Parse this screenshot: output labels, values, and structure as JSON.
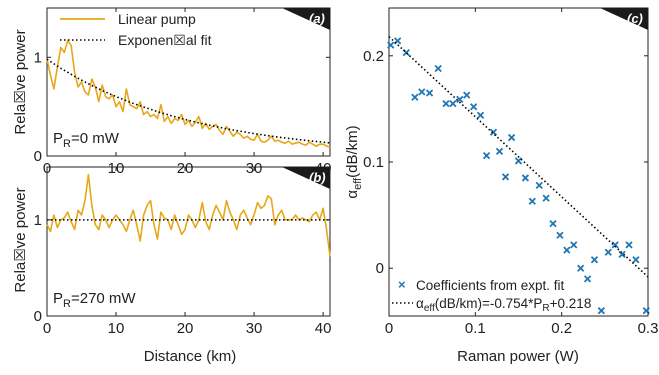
{
  "colors": {
    "linear": "#e6a817",
    "fit": "#000000",
    "marker": "#1f77b4",
    "axis": "#222222",
    "tag_bg": "#1a1a1a",
    "tag_fg": "#ffffff"
  },
  "chart_data": [
    {
      "id": "a",
      "tag": "(a)",
      "type": "line",
      "ylabel": "Rela☒ve power",
      "annotation": {
        "prefix": "P",
        "sub": "R",
        "suffix": "=0 mW"
      },
      "xlim": [
        0,
        41
      ],
      "ylim": [
        0,
        1.5
      ],
      "xticks": [
        "0",
        "10",
        "20",
        "30",
        "40"
      ],
      "xtick_values": [
        0,
        10,
        20,
        30,
        40
      ],
      "yticks": [
        "0",
        "1"
      ],
      "ytick_values": [
        0,
        1
      ],
      "legend": [
        "Linear pump",
        "Exponen☒al fit"
      ],
      "series": [
        {
          "name": "Linear pump",
          "style": "solid",
          "x": [
            0,
            0.5,
            1,
            1.5,
            2,
            2.5,
            3,
            3.5,
            4,
            4.5,
            5,
            5.5,
            6,
            6.5,
            7,
            7.5,
            8,
            8.5,
            9,
            9.5,
            10,
            10.5,
            11,
            11.5,
            12,
            12.5,
            13,
            13.5,
            14,
            14.5,
            15,
            15.5,
            16,
            16.5,
            17,
            17.5,
            18,
            18.5,
            19,
            19.5,
            20,
            20.5,
            21,
            21.5,
            22,
            22.5,
            23,
            23.5,
            24,
            24.5,
            25,
            25.5,
            26,
            26.5,
            27,
            27.5,
            28,
            28.5,
            29,
            29.5,
            30,
            30.5,
            31,
            31.5,
            32,
            32.5,
            33,
            33.5,
            34,
            34.5,
            35,
            35.5,
            36,
            36.5,
            37,
            37.5,
            38,
            38.5,
            39,
            39.5,
            40,
            40.5,
            41
          ],
          "y": [
            0.98,
            0.82,
            0.68,
            0.9,
            1.1,
            1.05,
            1.17,
            1.12,
            0.85,
            0.7,
            0.75,
            0.65,
            0.62,
            0.78,
            0.7,
            0.55,
            0.72,
            0.6,
            0.58,
            0.62,
            0.5,
            0.55,
            0.45,
            0.68,
            0.52,
            0.5,
            0.48,
            0.55,
            0.42,
            0.45,
            0.4,
            0.42,
            0.38,
            0.52,
            0.35,
            0.4,
            0.33,
            0.38,
            0.36,
            0.42,
            0.32,
            0.36,
            0.3,
            0.34,
            0.4,
            0.28,
            0.33,
            0.27,
            0.3,
            0.32,
            0.26,
            0.22,
            0.3,
            0.25,
            0.2,
            0.24,
            0.22,
            0.18,
            0.2,
            0.17,
            0.16,
            0.22,
            0.15,
            0.14,
            0.16,
            0.2,
            0.15,
            0.16,
            0.14,
            0.13,
            0.15,
            0.12,
            0.13,
            0.14,
            0.12,
            0.11,
            0.14,
            0.12,
            0.1,
            0.12,
            0.12,
            0.1,
            0.09
          ]
        },
        {
          "name": "Exponen☒al fit",
          "style": "dotted",
          "x": [
            0,
            2,
            4,
            6,
            8,
            10,
            12,
            14,
            16,
            18,
            20,
            22,
            24,
            26,
            28,
            30,
            32,
            34,
            36,
            38,
            40,
            41
          ],
          "y": [
            0.98,
            0.889,
            0.807,
            0.732,
            0.664,
            0.602,
            0.546,
            0.496,
            0.45,
            0.408,
            0.37,
            0.336,
            0.305,
            0.276,
            0.251,
            0.227,
            0.206,
            0.187,
            0.17,
            0.154,
            0.14,
            0.133
          ]
        }
      ]
    },
    {
      "id": "b",
      "tag": "(b)",
      "type": "line",
      "ylabel": "Rela☒ve power",
      "xlabel": "Distance (km)",
      "annotation": {
        "prefix": "P",
        "sub": "R",
        "suffix": "=270 mW"
      },
      "xlim": [
        0,
        41
      ],
      "ylim": [
        0,
        1.55
      ],
      "xticks": [
        "0",
        "10",
        "20",
        "30",
        "40"
      ],
      "xtick_values": [
        0,
        10,
        20,
        30,
        40
      ],
      "yticks": [
        "0",
        "1"
      ],
      "ytick_values": [
        0,
        1
      ],
      "series": [
        {
          "name": "",
          "style": "solid",
          "x": [
            0,
            0.5,
            1,
            1.5,
            2,
            2.5,
            3,
            3.5,
            4,
            4.5,
            5,
            5.5,
            6,
            6.5,
            7,
            7.5,
            8,
            8.5,
            9,
            9.5,
            10,
            10.5,
            11,
            11.5,
            12,
            12.5,
            13,
            13.5,
            14,
            14.5,
            15,
            15.5,
            16,
            16.5,
            17,
            17.5,
            18,
            18.5,
            19,
            19.5,
            20,
            20.5,
            21,
            21.5,
            22,
            22.5,
            23,
            23.5,
            24,
            24.5,
            25,
            25.5,
            26,
            26.5,
            27,
            27.5,
            28,
            28.5,
            29,
            29.5,
            30,
            30.5,
            31,
            31.5,
            32,
            32.5,
            33,
            33.5,
            34,
            34.5,
            35,
            35.5,
            36,
            36.5,
            37,
            37.5,
            38,
            38.5,
            39,
            39.5,
            40,
            40.5,
            41
          ],
          "y": [
            0.95,
            0.88,
            1.05,
            0.92,
            1.0,
            1.02,
            1.08,
            0.98,
            0.9,
            1.1,
            1.05,
            1.2,
            1.47,
            1.15,
            0.95,
            0.9,
            1.05,
            1.0,
            0.92,
            1.0,
            1.05,
            1.0,
            0.95,
            0.88,
            1.0,
            1.1,
            0.95,
            0.78,
            1.05,
            1.15,
            1.2,
            0.95,
            0.8,
            1.08,
            1.02,
            1.0,
            0.9,
            1.05,
            0.95,
            0.85,
            0.9,
            1.05,
            1.0,
            0.92,
            1.0,
            1.18,
            0.98,
            0.9,
            1.05,
            1.15,
            1.08,
            1.0,
            1.2,
            1.08,
            1.0,
            0.9,
            1.05,
            1.1,
            1.02,
            0.95,
            1.05,
            1.18,
            1.12,
            1.15,
            1.25,
            1.22,
            0.95,
            1.05,
            1.1,
            1.0,
            1.0,
            1.0,
            1.05,
            1.0,
            1.02,
            1.0,
            0.98,
            1.05,
            1.08,
            1.0,
            1.12,
            0.9,
            0.62
          ]
        },
        {
          "name": "",
          "style": "dotted",
          "x": [
            0,
            41
          ],
          "y": [
            1.0,
            1.0
          ]
        }
      ]
    },
    {
      "id": "c",
      "tag": "(c)",
      "type": "scatter",
      "ylabel_main": "α",
      "ylabel_sub": "eff",
      "ylabel_rest": "(dB/km)",
      "xlabel": "Raman power (W)",
      "xlim": [
        0,
        0.3
      ],
      "ylim": [
        -0.045,
        0.245
      ],
      "xticks": [
        "0",
        "0.1",
        "0.2",
        "0.3"
      ],
      "xtick_values": [
        0,
        0.1,
        0.2,
        0.3
      ],
      "yticks": [
        "0",
        "0.1",
        "0.2"
      ],
      "ytick_values": [
        0,
        0.1,
        0.2
      ],
      "legend": [
        {
          "label": "Coefficients from expt. fit"
        },
        {
          "prefix": "α",
          "sub": "eff",
          "mid": "(dB/km)=-0.754*P",
          "sub2": "R",
          "suffix": "+0.218"
        }
      ],
      "series": [
        {
          "name": "Coefficients from expt. fit",
          "style": "marker",
          "x": [
            0.002,
            0.01,
            0.02,
            0.03,
            0.038,
            0.047,
            0.057,
            0.066,
            0.074,
            0.082,
            0.09,
            0.098,
            0.106,
            0.113,
            0.121,
            0.128,
            0.135,
            0.142,
            0.15,
            0.158,
            0.166,
            0.174,
            0.182,
            0.19,
            0.198,
            0.206,
            0.214,
            0.222,
            0.23,
            0.238,
            0.246,
            0.254,
            0.262,
            0.27,
            0.278,
            0.286,
            0.298
          ],
          "y": [
            0.21,
            0.214,
            0.203,
            0.161,
            0.166,
            0.165,
            0.188,
            0.155,
            0.155,
            0.159,
            0.163,
            0.152,
            0.144,
            0.106,
            0.128,
            0.11,
            0.086,
            0.123,
            0.101,
            0.085,
            0.063,
            0.078,
            0.066,
            0.042,
            0.031,
            0.017,
            0.022,
            0.0,
            -0.01,
            0.008,
            -0.04,
            0.015,
            0.022,
            0.013,
            0.022,
            0.008,
            -0.04
          ]
        },
        {
          "name": "αeff(dB/km)=-0.754*PR+0.218",
          "style": "dotted",
          "x": [
            0,
            0.3
          ],
          "y": [
            0.218,
            -0.0082
          ]
        }
      ]
    }
  ]
}
